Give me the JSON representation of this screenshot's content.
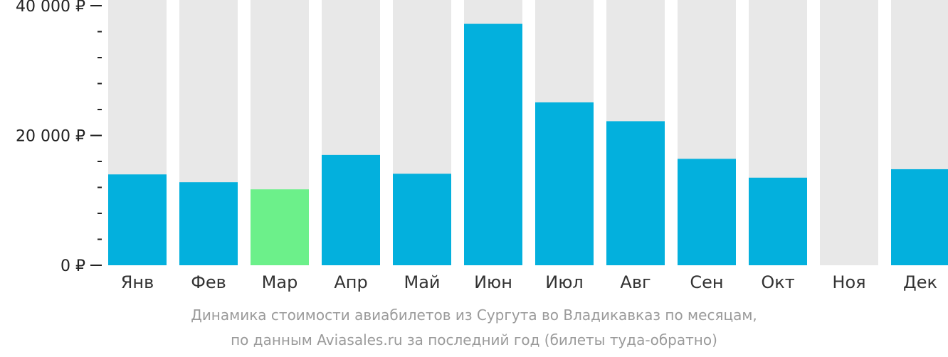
{
  "chart_data": {
    "type": "bar",
    "title": "",
    "xlabel": "",
    "ylabel": "",
    "ylim": [
      0,
      40000
    ],
    "y_tick_values": [
      0,
      20000,
      40000
    ],
    "y_tick_labels": [
      "0 ₽",
      "20 000 ₽",
      "40 000 ₽"
    ],
    "categories": [
      "Янв",
      "Фев",
      "Мар",
      "Апр",
      "Май",
      "Июн",
      "Июл",
      "Авг",
      "Сен",
      "Окт",
      "Ноя",
      "Дек"
    ],
    "values": [
      14000,
      12800,
      11700,
      17000,
      14100,
      37200,
      25100,
      22200,
      16400,
      13500,
      null,
      14800
    ],
    "highlight_index": 2,
    "grid": false,
    "legend": "none",
    "colors": {
      "bar": "#03b0dd",
      "highlight": "#6cf08a",
      "background_column": "#e8e8e8"
    }
  },
  "caption": {
    "line1": "Динамика стоимости авиабилетов из Сургута во Владикавказ по месяцам,",
    "line2": "по данным Aviasales.ru за последний год (билеты туда-обратно)"
  }
}
